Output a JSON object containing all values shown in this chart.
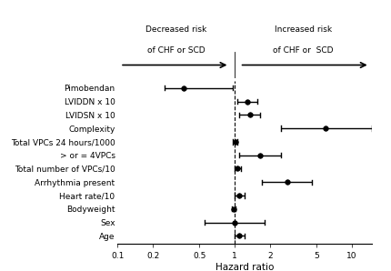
{
  "variables": [
    "Pimobendan",
    "LVIDDN x 10",
    "LVIDSN x 10",
    "Complexity",
    "Total VPCs 24 hours/1000",
    "> or = 4VPCs",
    "Total number of VPCs/10",
    "Arrhythmia present",
    "Heart rate/10",
    "Bodyweight",
    "Sex",
    "Age"
  ],
  "hr": [
    0.37,
    1.28,
    1.35,
    6.0,
    1.01,
    1.65,
    1.06,
    2.8,
    1.1,
    0.98,
    1.0,
    1.1
  ],
  "lo": [
    0.25,
    1.05,
    1.1,
    2.5,
    0.97,
    1.1,
    1.0,
    1.7,
    1.0,
    0.95,
    0.55,
    1.0
  ],
  "hi": [
    0.97,
    1.55,
    1.65,
    15.0,
    1.05,
    2.5,
    1.13,
    4.6,
    1.22,
    1.01,
    1.8,
    1.22
  ],
  "ref_line": 1.0,
  "xmin": 0.1,
  "xmax": 15.0,
  "xlabel": "Hazard ratio",
  "xticks": [
    0.1,
    0.2,
    0.5,
    1.0,
    2.0,
    5.0,
    10.0
  ],
  "xticklabels": [
    "0.1",
    "0.2",
    "0.5",
    "1",
    "2",
    "5",
    "10"
  ],
  "arrow_left_text1": "Decreased risk",
  "arrow_left_text2": "of CHF or SCD",
  "arrow_right_text1": "Increased risk",
  "arrow_right_text2": "of CHF or  SCD",
  "dot_color": "black",
  "dot_size": 4,
  "line_color": "black",
  "line_width": 1.0,
  "cap_size": 0.18,
  "background_color": "white",
  "label_fontsize": 6.5,
  "tick_fontsize": 6.5,
  "xlabel_fontsize": 7.5
}
